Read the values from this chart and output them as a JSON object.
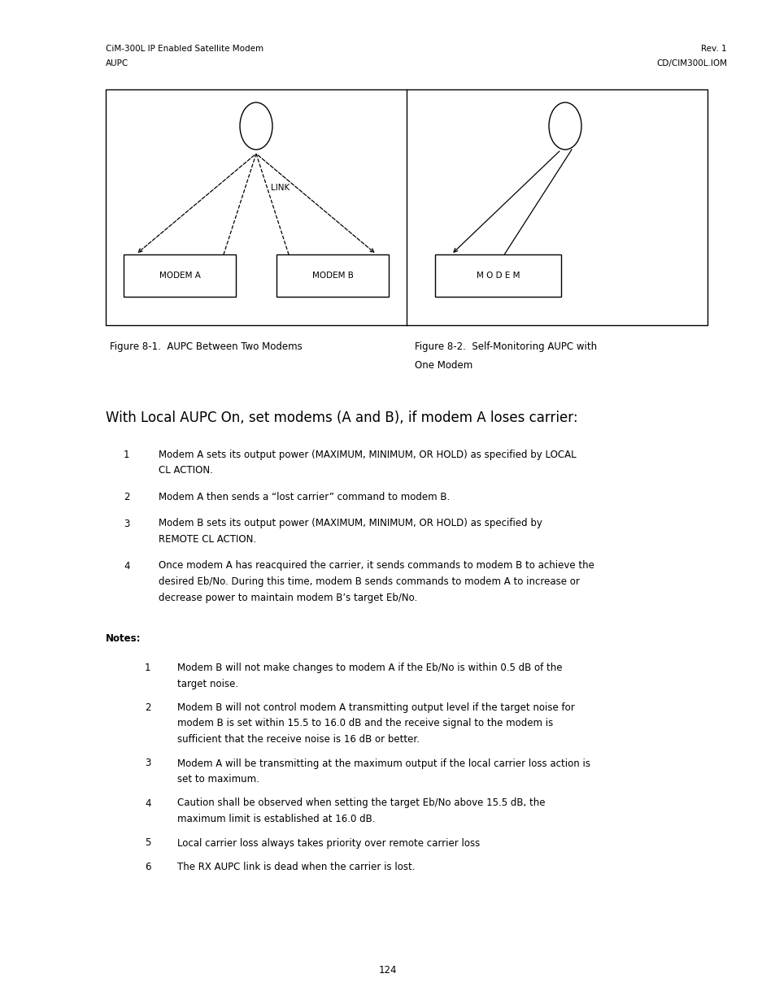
{
  "page_width": 9.54,
  "page_height": 12.35,
  "background_color": "#ffffff",
  "header_left_line1": "CiM-300L IP Enabled Satellite Modem",
  "header_left_line2": "AUPC",
  "header_right_line1": "Rev. 1",
  "header_right_line2": "CD/CIM300L.IOM",
  "header_fontsize": 7.5,
  "fig1_caption": "Figure 8-1.  AUPC Between Two Modems",
  "fig2_caption_line1": "Figure 8-2.  Self-Monitoring AUPC with",
  "fig2_caption_line2": "One Modem",
  "caption_fontsize": 8.5,
  "intro_text": "With Local AUPC On, set modems (A and B), if modem A loses carrier:",
  "intro_fontsize": 12,
  "numbered_items": [
    {
      "num": "1",
      "text": "Modem A sets its output power (MAXIMUM, MINIMUM, OR HOLD) as specified by LOCAL\nCL ACTION."
    },
    {
      "num": "2",
      "text": "Modem A then sends a “lost carrier” command to modem B."
    },
    {
      "num": "3",
      "text": "Modem B sets its output power (MAXIMUM, MINIMUM, OR HOLD) as specified by\nREMOTE CL ACTION."
    },
    {
      "num": "4",
      "text": "Once modem A has reacquired the carrier, it sends commands to modem B to achieve the\ndesired Eb/No. During this time, modem B sends commands to modem A to increase or\ndecrease power to maintain modem B’s target Eb/No."
    }
  ],
  "notes_label": "Notes:",
  "notes_fontsize": 8.5,
  "notes_items": [
    {
      "num": "1",
      "text": "Modem B will not make changes to modem A if the Eb/No is within 0.5 dB of the\ntarget noise."
    },
    {
      "num": "2",
      "text": "Modem B will not control modem A transmitting output level if the target noise for\nmodem B is set within 15.5 to 16.0 dB and the receive signal to the modem is\nsufficient that the receive noise is 16 dB or better."
    },
    {
      "num": "3",
      "text": "Modem A will be transmitting at the maximum output if the local carrier loss action is\nset to maximum."
    },
    {
      "num": "4",
      "text": "Caution shall be observed when setting the target Eb/No above 15.5 dB, the\nmaximum limit is established at 16.0 dB."
    },
    {
      "num": "5",
      "text": "Local carrier loss always takes priority over remote carrier loss"
    },
    {
      "num": "6",
      "text": "The RX AUPC link is dead when the carrier is lost."
    }
  ],
  "page_number": "124",
  "text_color": "#000000",
  "box_color": "#000000",
  "line_color": "#000000"
}
